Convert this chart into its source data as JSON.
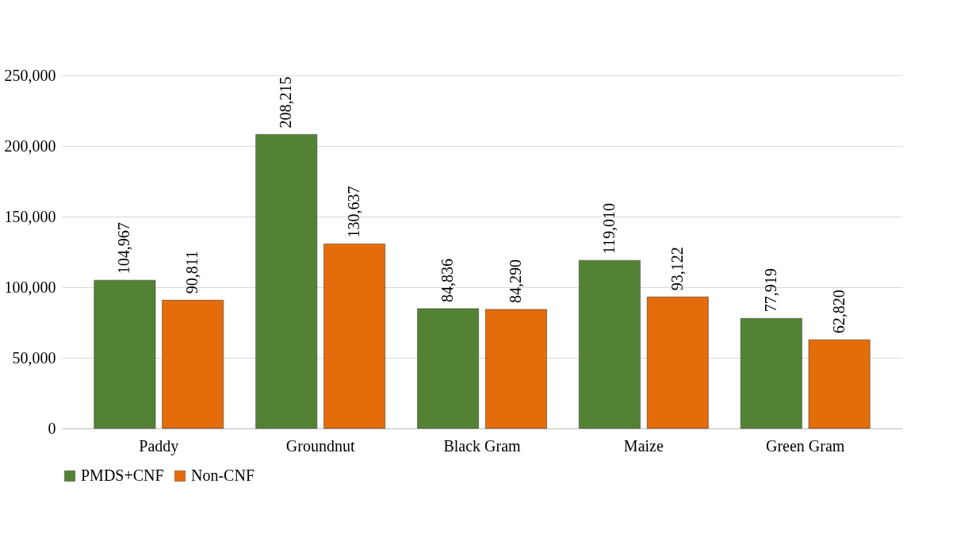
{
  "chart_data": {
    "type": "bar",
    "categories": [
      "Paddy",
      "Groundnut",
      "Black Gram",
      "Maize",
      "Green Gram"
    ],
    "series": [
      {
        "name": "PMDS+CNF",
        "color": "#548235",
        "values": [
          104967,
          208215,
          84836,
          119010,
          77919
        ],
        "value_labels": [
          "104,967",
          "208,215",
          "84,836",
          "119,010",
          "77,919"
        ]
      },
      {
        "name": "Non-CNF",
        "color": "#e46c0a",
        "values": [
          90811,
          130637,
          84290,
          93122,
          62820
        ],
        "value_labels": [
          "90,811",
          "130,637",
          "84,290",
          "93,122",
          "62,820"
        ]
      }
    ],
    "ylim": [
      0,
      250000
    ],
    "yticks": [
      0,
      {
        "value": 50000,
        "label": "50,000"
      },
      {
        "value": 100000,
        "label": "100,000"
      },
      {
        "value": 150000,
        "label": "150,000"
      },
      {
        "value": 200000,
        "label": "200,000"
      },
      {
        "value": 250000,
        "label": "250,000"
      }
    ],
    "grid": "y",
    "legend": "bottom"
  }
}
